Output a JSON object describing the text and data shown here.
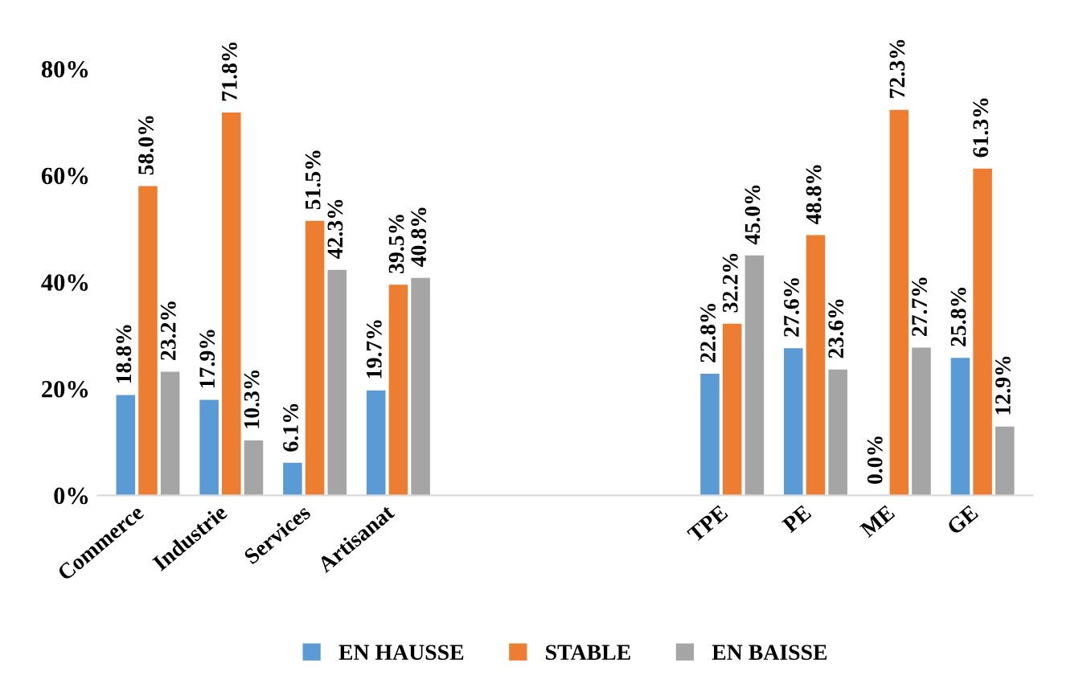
{
  "chart_data": {
    "type": "bar",
    "categories": [
      "Commerce",
      "Industrie",
      "Services",
      "Artisanat",
      null,
      null,
      null,
      "TPE",
      "PE",
      "ME",
      "GE"
    ],
    "series": [
      {
        "name": "EN HAUSSE",
        "color": "#5b9bd5",
        "values": [
          18.8,
          17.9,
          6.1,
          19.7,
          null,
          null,
          null,
          22.8,
          27.6,
          0.0,
          25.8
        ],
        "value_labels": [
          "18.8%",
          "17.9%",
          "6.1%",
          "19.7%",
          null,
          null,
          null,
          "22.8%",
          "27.6%",
          "0.0%",
          "25.8%"
        ]
      },
      {
        "name": "STABLE",
        "color": "#ed7d31",
        "values": [
          58.0,
          71.8,
          51.5,
          39.5,
          null,
          null,
          null,
          32.2,
          48.8,
          72.3,
          61.3
        ],
        "value_labels": [
          "58.0%",
          "71.8%",
          "51.5%",
          "39.5%",
          null,
          null,
          null,
          "32.2%",
          "48.8%",
          "72.3%",
          "61.3%"
        ]
      },
      {
        "name": "EN BAISSE",
        "color": "#a5a5a5",
        "values": [
          23.2,
          10.3,
          42.3,
          40.8,
          null,
          null,
          null,
          45.0,
          23.6,
          27.7,
          12.9
        ],
        "value_labels": [
          "23.2%",
          "10.3%",
          "42.3%",
          "40.8%",
          null,
          null,
          null,
          "45.0%",
          "23.6%",
          "27.7%",
          "12.9%"
        ]
      }
    ],
    "ylim": [
      0,
      80
    ],
    "yticks": [
      {
        "value": 0,
        "label": "0%"
      },
      {
        "value": 20,
        "label": "20%"
      },
      {
        "value": 40,
        "label": "40%"
      },
      {
        "value": 60,
        "label": "60%"
      },
      {
        "value": 80,
        "label": "80%"
      }
    ],
    "legend": "bottom",
    "grid": false
  }
}
